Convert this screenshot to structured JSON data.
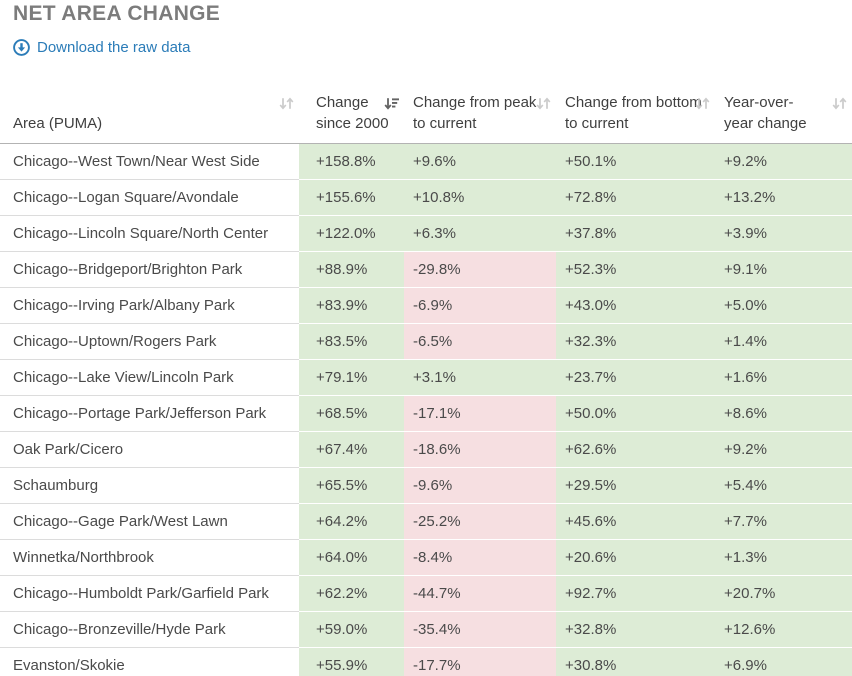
{
  "page": {
    "title": "NET AREA CHANGE",
    "download_link_label": "Download the raw data"
  },
  "icons": {
    "download_icon": "down-arrow-in-circle",
    "sort_inactive_icon": "up-down-arrows",
    "sort_active_icon": "down-arrow-with-bars (sorted descending)"
  },
  "colors": {
    "positive_bg": "#ddecd6",
    "negative_bg": "#f6dfe1",
    "link_blue": "#2b7cb8",
    "title_gray": "#7c7c7c",
    "header_text": "#3f3f3f",
    "cell_text": "#4a4a4a",
    "divider": "#dcdcdc",
    "header_border": "#b3b3b3",
    "sort_inactive": "#cbcbcb",
    "sort_active": "#636363"
  },
  "table": {
    "columns": [
      {
        "label": "Area (PUMA)",
        "sort": "none"
      },
      {
        "label": "Change since 2000",
        "sort": "desc"
      },
      {
        "label": "Change from peak to current",
        "sort": "none"
      },
      {
        "label": "Change from bottom to current",
        "sort": "none"
      },
      {
        "label": "Year-over-year change",
        "sort": "none"
      }
    ],
    "rows": [
      {
        "area": "Chicago--West Town/Near West Side",
        "change_since_2000": "+158.8%",
        "change_from_peak": "+9.6%",
        "change_from_bottom": "+50.1%",
        "yoy_change": "+9.2%"
      },
      {
        "area": "Chicago--Logan Square/Avondale",
        "change_since_2000": "+155.6%",
        "change_from_peak": "+10.8%",
        "change_from_bottom": "+72.8%",
        "yoy_change": "+13.2%"
      },
      {
        "area": "Chicago--Lincoln Square/North Center",
        "change_since_2000": "+122.0%",
        "change_from_peak": "+6.3%",
        "change_from_bottom": "+37.8%",
        "yoy_change": "+3.9%"
      },
      {
        "area": "Chicago--Bridgeport/Brighton Park",
        "change_since_2000": "+88.9%",
        "change_from_peak": "-29.8%",
        "change_from_bottom": "+52.3%",
        "yoy_change": "+9.1%"
      },
      {
        "area": "Chicago--Irving Park/Albany Park",
        "change_since_2000": "+83.9%",
        "change_from_peak": "-6.9%",
        "change_from_bottom": "+43.0%",
        "yoy_change": "+5.0%"
      },
      {
        "area": "Chicago--Uptown/Rogers Park",
        "change_since_2000": "+83.5%",
        "change_from_peak": "-6.5%",
        "change_from_bottom": "+32.3%",
        "yoy_change": "+1.4%"
      },
      {
        "area": "Chicago--Lake View/Lincoln Park",
        "change_since_2000": "+79.1%",
        "change_from_peak": "+3.1%",
        "change_from_bottom": "+23.7%",
        "yoy_change": "+1.6%"
      },
      {
        "area": "Chicago--Portage Park/Jefferson Park",
        "change_since_2000": "+68.5%",
        "change_from_peak": "-17.1%",
        "change_from_bottom": "+50.0%",
        "yoy_change": "+8.6%"
      },
      {
        "area": "Oak Park/Cicero",
        "change_since_2000": "+67.4%",
        "change_from_peak": "-18.6%",
        "change_from_bottom": "+62.6%",
        "yoy_change": "+9.2%"
      },
      {
        "area": "Schaumburg",
        "change_since_2000": "+65.5%",
        "change_from_peak": "-9.6%",
        "change_from_bottom": "+29.5%",
        "yoy_change": "+5.4%"
      },
      {
        "area": "Chicago--Gage Park/West Lawn",
        "change_since_2000": "+64.2%",
        "change_from_peak": "-25.2%",
        "change_from_bottom": "+45.6%",
        "yoy_change": "+7.7%"
      },
      {
        "area": "Winnetka/Northbrook",
        "change_since_2000": "+64.0%",
        "change_from_peak": "-8.4%",
        "change_from_bottom": "+20.6%",
        "yoy_change": "+1.3%"
      },
      {
        "area": "Chicago--Humboldt Park/Garfield Park",
        "change_since_2000": "+62.2%",
        "change_from_peak": "-44.7%",
        "change_from_bottom": "+92.7%",
        "yoy_change": "+20.7%"
      },
      {
        "area": "Chicago--Bronzeville/Hyde Park",
        "change_since_2000": "+59.0%",
        "change_from_peak": "-35.4%",
        "change_from_bottom": "+32.8%",
        "yoy_change": "+12.6%"
      },
      {
        "area": "Evanston/Skokie",
        "change_since_2000": "+55.9%",
        "change_from_peak": "-17.7%",
        "change_from_bottom": "+30.8%",
        "yoy_change": "+6.9%"
      }
    ]
  }
}
